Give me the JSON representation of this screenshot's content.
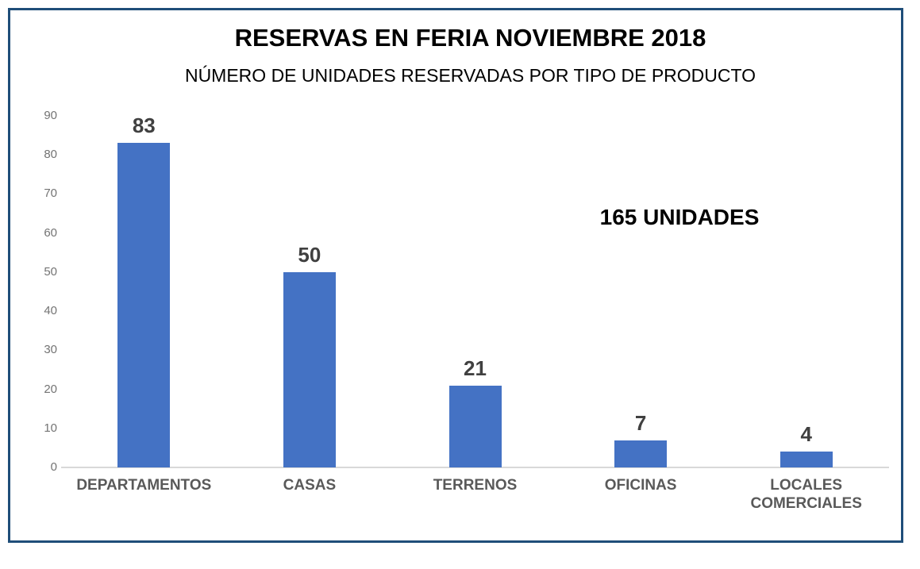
{
  "chart_data": {
    "type": "bar",
    "title": "RESERVAS EN FERIA NOVIEMBRE 2018",
    "subtitle": "NÚMERO DE UNIDADES RESERVADAS POR TIPO DE PRODUCTO",
    "categories": [
      "DEPARTAMENTOS",
      "CASAS",
      "TERRENOS",
      "OFICINAS",
      "LOCALES COMERCIALES"
    ],
    "values": [
      83,
      50,
      21,
      7,
      4
    ],
    "annotation": "165 UNIDADES",
    "xlabel": "",
    "ylabel": "",
    "ylim": [
      0,
      90
    ],
    "ytick_step": 10,
    "grid": false,
    "legend": false
  },
  "colors": {
    "bar": "#4472C4",
    "frame_border": "#1F4E79",
    "axis_line": "#D9D9D9",
    "ytick_text": "#737373",
    "xlabel_text": "#595959",
    "value_label_text": "#404040",
    "title_text": "#000000",
    "annotation_text": "#000000"
  }
}
